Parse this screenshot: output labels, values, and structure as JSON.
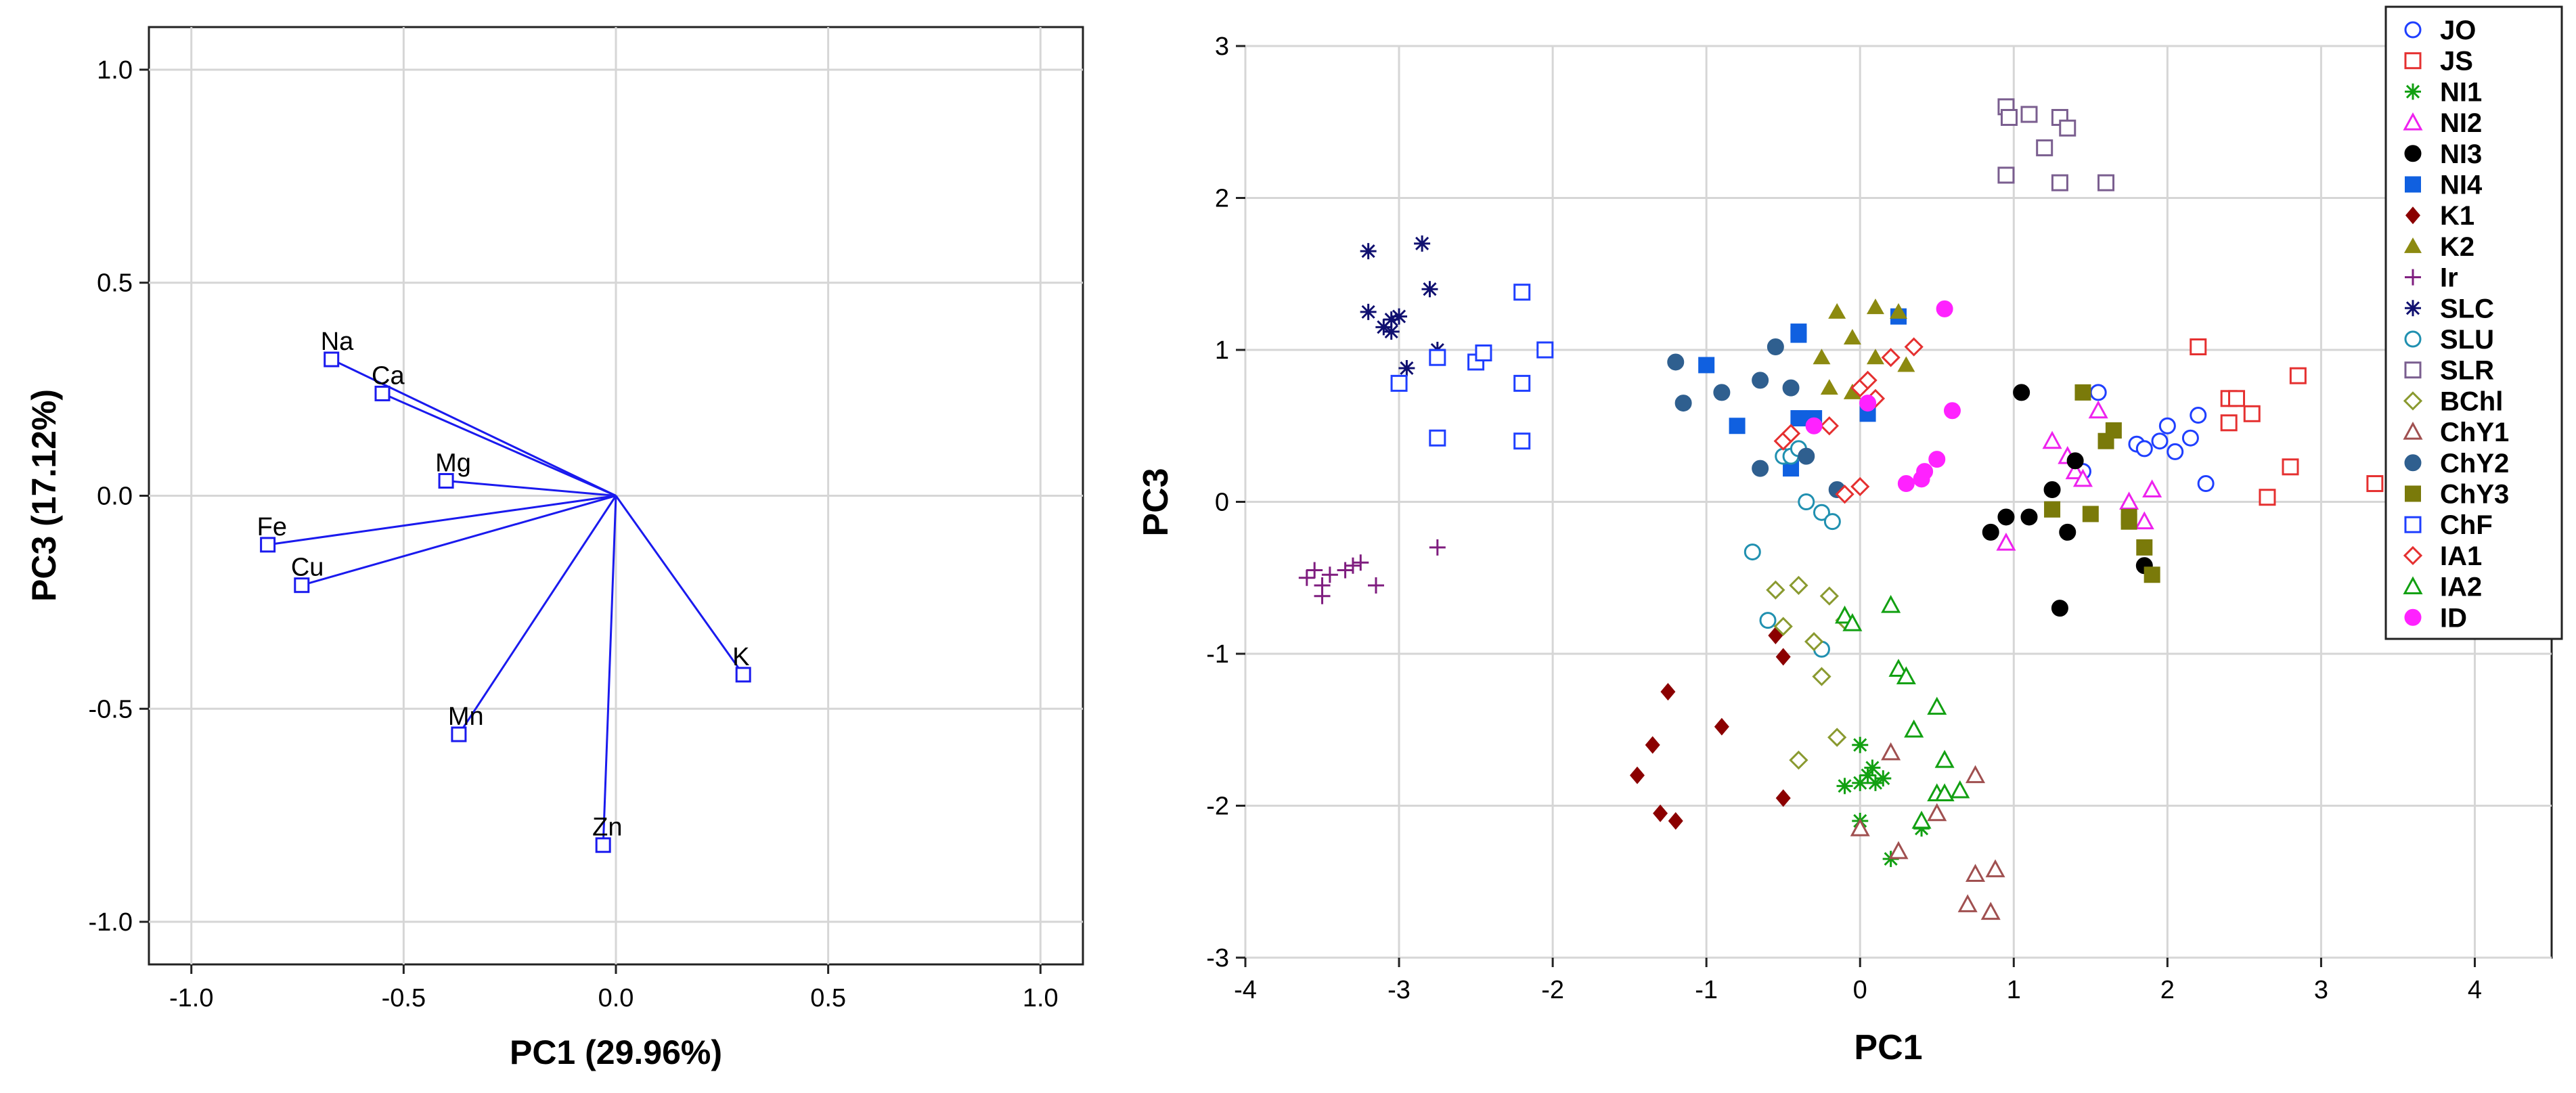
{
  "chart_data": [
    {
      "type": "scatter",
      "subtype": "loading-plot",
      "xlabel": "PC1 (29.96%)",
      "ylabel": "PC3 (17.12%)",
      "xlim": [
        -1.1,
        1.1
      ],
      "ylim": [
        -1.1,
        1.1
      ],
      "xticks": [
        -1.0,
        -0.5,
        0.0,
        0.5,
        1.0
      ],
      "yticks": [
        -1.0,
        -0.5,
        0.0,
        0.5,
        1.0
      ],
      "xtick_labels": [
        "-1.0",
        "-0.5",
        "0.0",
        "0.5",
        "1.0"
      ],
      "ytick_labels": [
        "-1.0",
        "-0.5",
        "0.0",
        "0.5",
        "1.0"
      ],
      "grid": true,
      "vector_color": "#1a1aee",
      "loadings": [
        {
          "label": "Na",
          "x": -0.67,
          "y": 0.32
        },
        {
          "label": "Ca",
          "x": -0.55,
          "y": 0.24
        },
        {
          "label": "Mg",
          "x": -0.4,
          "y": 0.035
        },
        {
          "label": "Fe",
          "x": -0.82,
          "y": -0.115
        },
        {
          "label": "Cu",
          "x": -0.74,
          "y": -0.21
        },
        {
          "label": "Mn",
          "x": -0.37,
          "y": -0.56
        },
        {
          "label": "Zn",
          "x": -0.03,
          "y": -0.82
        },
        {
          "label": "K",
          "x": 0.3,
          "y": -0.42
        }
      ]
    },
    {
      "type": "scatter",
      "subtype": "score-plot",
      "xlabel": "PC1",
      "ylabel": "PC3",
      "xlim": [
        -4,
        4.5
      ],
      "ylim": [
        -3,
        3
      ],
      "xticks": [
        -4,
        -3,
        -2,
        -1,
        0,
        1,
        2,
        3,
        4
      ],
      "yticks": [
        -3,
        -2,
        -1,
        0,
        1,
        2,
        3
      ],
      "xtick_labels": [
        "-4",
        "-3",
        "-2",
        "-1",
        "0",
        "1",
        "2",
        "3",
        "4"
      ],
      "ytick_labels": [
        "-3",
        "-2",
        "-1",
        "0",
        "1",
        "2",
        "3"
      ],
      "grid": true,
      "legend_position": "top-right",
      "series": [
        {
          "name": "JO",
          "marker": "circle-open",
          "color": "#1f3fff",
          "points": [
            [
              1.55,
              0.72
            ],
            [
              1.8,
              0.38
            ],
            [
              1.85,
              0.35
            ],
            [
              1.95,
              0.4
            ],
            [
              2.0,
              0.5
            ],
            [
              2.05,
              0.33
            ],
            [
              2.15,
              0.42
            ],
            [
              2.2,
              0.57
            ],
            [
              2.25,
              0.12
            ],
            [
              1.45,
              0.2
            ]
          ]
        },
        {
          "name": "JS",
          "marker": "square-open",
          "color": "#e53030",
          "points": [
            [
              2.2,
              1.02
            ],
            [
              2.4,
              0.68
            ],
            [
              2.45,
              0.68
            ],
            [
              2.55,
              0.58
            ],
            [
              2.4,
              0.52
            ],
            [
              2.65,
              0.03
            ],
            [
              2.8,
              0.23
            ],
            [
              2.85,
              0.83
            ],
            [
              3.35,
              0.12
            ]
          ]
        },
        {
          "name": "NI1",
          "marker": "asterisk",
          "color": "#12a012",
          "points": [
            [
              0.0,
              -1.6
            ],
            [
              0.05,
              -1.8
            ],
            [
              0.08,
              -1.75
            ],
            [
              0.1,
              -1.85
            ],
            [
              0.15,
              -1.82
            ],
            [
              0.0,
              -1.85
            ],
            [
              -0.1,
              -1.87
            ],
            [
              0.0,
              -2.1
            ],
            [
              0.2,
              -2.35
            ],
            [
              0.4,
              -2.15
            ]
          ]
        },
        {
          "name": "NI2",
          "marker": "triangle-open",
          "color": "#ee22ee",
          "points": [
            [
              1.25,
              0.4
            ],
            [
              1.35,
              0.3
            ],
            [
              1.4,
              0.2
            ],
            [
              1.45,
              0.15
            ],
            [
              1.55,
              0.6
            ],
            [
              1.75,
              0.0
            ],
            [
              1.85,
              -0.13
            ],
            [
              1.9,
              0.08
            ],
            [
              0.95,
              -0.27
            ]
          ]
        },
        {
          "name": "NI3",
          "marker": "circle-filled",
          "color": "#000000",
          "points": [
            [
              0.85,
              -0.2
            ],
            [
              0.95,
              -0.1
            ],
            [
              1.05,
              0.72
            ],
            [
              1.1,
              -0.1
            ],
            [
              1.25,
              0.08
            ],
            [
              1.35,
              -0.2
            ],
            [
              1.4,
              0.27
            ],
            [
              1.3,
              -0.7
            ],
            [
              1.85,
              -0.42
            ]
          ]
        },
        {
          "name": "NI4",
          "marker": "square-filled",
          "color": "#1060e0",
          "points": [
            [
              -1.0,
              0.9
            ],
            [
              -0.8,
              0.5
            ],
            [
              -0.45,
              0.22
            ],
            [
              -0.4,
              1.1
            ],
            [
              -0.4,
              0.55
            ],
            [
              -0.3,
              0.55
            ],
            [
              0.05,
              0.58
            ],
            [
              0.25,
              1.22
            ],
            [
              -0.4,
              1.12
            ]
          ]
        },
        {
          "name": "K1",
          "marker": "diamond-filled",
          "color": "#8b0000",
          "points": [
            [
              -1.25,
              -1.25
            ],
            [
              -1.3,
              -2.05
            ],
            [
              -1.2,
              -2.1
            ],
            [
              -1.45,
              -1.8
            ],
            [
              -1.35,
              -1.6
            ],
            [
              -0.9,
              -1.48
            ],
            [
              -0.55,
              -0.88
            ],
            [
              -0.5,
              -1.95
            ],
            [
              -0.5,
              -1.02
            ]
          ]
        },
        {
          "name": "K2",
          "marker": "triangle-filled",
          "color": "#8c8a10",
          "points": [
            [
              -0.2,
              0.75
            ],
            [
              -0.15,
              1.25
            ],
            [
              -0.05,
              0.72
            ],
            [
              -0.05,
              1.08
            ],
            [
              -0.25,
              0.95
            ],
            [
              0.1,
              0.95
            ],
            [
              0.1,
              1.28
            ],
            [
              0.25,
              1.25
            ],
            [
              0.3,
              0.9
            ]
          ]
        },
        {
          "name": "Ir",
          "marker": "plus",
          "color": "#7f1d7f",
          "points": [
            [
              -3.6,
              -0.5
            ],
            [
              -3.55,
              -0.45
            ],
            [
              -3.5,
              -0.55
            ],
            [
              -3.5,
              -0.62
            ],
            [
              -3.45,
              -0.48
            ],
            [
              -3.35,
              -0.45
            ],
            [
              -3.3,
              -0.42
            ],
            [
              -3.25,
              -0.4
            ],
            [
              -3.15,
              -0.55
            ],
            [
              -2.75,
              -0.3
            ]
          ]
        },
        {
          "name": "SLC",
          "marker": "asterisk",
          "color": "#101070",
          "points": [
            [
              -3.2,
              1.25
            ],
            [
              -3.1,
              1.15
            ],
            [
              -3.05,
              1.2
            ],
            [
              -3.2,
              1.65
            ],
            [
              -3.0,
              1.22
            ],
            [
              -2.85,
              1.7
            ],
            [
              -2.8,
              1.4
            ],
            [
              -2.95,
              0.88
            ],
            [
              -2.75,
              1.0
            ],
            [
              -3.05,
              1.12
            ]
          ]
        },
        {
          "name": "SLU",
          "marker": "circle-open",
          "color": "#2090b0",
          "points": [
            [
              -0.7,
              -0.33
            ],
            [
              -0.6,
              -0.78
            ],
            [
              -0.5,
              0.3
            ],
            [
              -0.45,
              0.3
            ],
            [
              -0.4,
              0.35
            ],
            [
              -0.35,
              0.0
            ],
            [
              -0.25,
              -0.07
            ],
            [
              -0.18,
              -0.13
            ],
            [
              -0.25,
              -0.97
            ]
          ]
        },
        {
          "name": "SLR",
          "marker": "square-open",
          "color": "#7a5e8f",
          "points": [
            [
              0.95,
              2.6
            ],
            [
              0.97,
              2.53
            ],
            [
              1.1,
              2.55
            ],
            [
              1.3,
              2.53
            ],
            [
              1.35,
              2.46
            ],
            [
              1.2,
              2.33
            ],
            [
              0.95,
              2.15
            ],
            [
              1.3,
              2.1
            ],
            [
              1.6,
              2.1
            ]
          ]
        },
        {
          "name": "BChl",
          "marker": "diamond-open",
          "color": "#8a9a30",
          "points": [
            [
              -0.55,
              -0.58
            ],
            [
              -0.5,
              -0.82
            ],
            [
              -0.4,
              -0.55
            ],
            [
              -0.25,
              -1.15
            ],
            [
              -0.2,
              -0.62
            ],
            [
              -0.1,
              -0.78
            ],
            [
              -0.15,
              -1.55
            ],
            [
              -0.3,
              -0.92
            ],
            [
              -0.4,
              -1.7
            ]
          ]
        },
        {
          "name": "ChY1",
          "marker": "triangle-open",
          "color": "#a05050",
          "points": [
            [
              0.2,
              -1.65
            ],
            [
              0.25,
              -2.3
            ],
            [
              0.5,
              -2.05
            ],
            [
              0.75,
              -1.8
            ],
            [
              0.75,
              -2.45
            ],
            [
              0.7,
              -2.65
            ],
            [
              0.88,
              -2.42
            ],
            [
              0.85,
              -2.7
            ],
            [
              0.0,
              -2.15
            ]
          ]
        },
        {
          "name": "ChY2",
          "marker": "circle-filled",
          "color": "#2f5f8f",
          "points": [
            [
              -1.2,
              0.92
            ],
            [
              -1.15,
              0.65
            ],
            [
              -0.9,
              0.72
            ],
            [
              -0.65,
              0.22
            ],
            [
              -0.55,
              1.02
            ],
            [
              -0.45,
              0.75
            ],
            [
              -0.35,
              0.3
            ],
            [
              -0.15,
              0.08
            ],
            [
              -0.65,
              0.8
            ]
          ]
        },
        {
          "name": "ChY3",
          "marker": "square-filled",
          "color": "#7a7a0a",
          "points": [
            [
              1.25,
              -0.05
            ],
            [
              1.45,
              0.72
            ],
            [
              1.5,
              -0.08
            ],
            [
              1.6,
              0.4
            ],
            [
              1.65,
              0.47
            ],
            [
              1.75,
              -0.13
            ],
            [
              1.85,
              -0.3
            ],
            [
              1.9,
              -0.48
            ],
            [
              1.75,
              -0.1
            ]
          ]
        },
        {
          "name": "ChF",
          "marker": "square-open",
          "color": "#1f3fff",
          "points": [
            [
              -3.0,
              0.78
            ],
            [
              -2.75,
              0.42
            ],
            [
              -2.75,
              0.95
            ],
            [
              -2.5,
              0.92
            ],
            [
              -2.45,
              0.98
            ],
            [
              -2.2,
              1.38
            ],
            [
              -2.2,
              0.78
            ],
            [
              -2.05,
              1.0
            ],
            [
              -2.2,
              0.4
            ]
          ]
        },
        {
          "name": "IA1",
          "marker": "diamond-open",
          "color": "#e53030",
          "points": [
            [
              -0.5,
              0.4
            ],
            [
              -0.45,
              0.45
            ],
            [
              -0.2,
              0.5
            ],
            [
              -0.1,
              0.05
            ],
            [
              0.0,
              0.75
            ],
            [
              0.05,
              0.8
            ],
            [
              0.1,
              0.68
            ],
            [
              0.2,
              0.95
            ],
            [
              0.35,
              1.02
            ],
            [
              0.0,
              0.1
            ]
          ]
        },
        {
          "name": "IA2",
          "marker": "triangle-open",
          "color": "#12a012",
          "points": [
            [
              -0.1,
              -0.75
            ],
            [
              -0.05,
              -0.8
            ],
            [
              0.2,
              -0.68
            ],
            [
              0.25,
              -1.1
            ],
            [
              0.3,
              -1.15
            ],
            [
              0.35,
              -1.5
            ],
            [
              0.5,
              -1.35
            ],
            [
              0.55,
              -1.7
            ],
            [
              0.5,
              -1.92
            ],
            [
              0.65,
              -1.9
            ],
            [
              0.55,
              -1.92
            ],
            [
              0.4,
              -2.1
            ]
          ]
        },
        {
          "name": "ID",
          "marker": "circle-filled",
          "color": "#ff22ff",
          "points": [
            [
              -0.3,
              0.5
            ],
            [
              0.05,
              0.65
            ],
            [
              0.3,
              0.12
            ],
            [
              0.42,
              0.2
            ],
            [
              0.5,
              0.28
            ],
            [
              0.55,
              1.27
            ],
            [
              0.6,
              0.6
            ],
            [
              0.4,
              0.15
            ]
          ]
        }
      ]
    }
  ]
}
